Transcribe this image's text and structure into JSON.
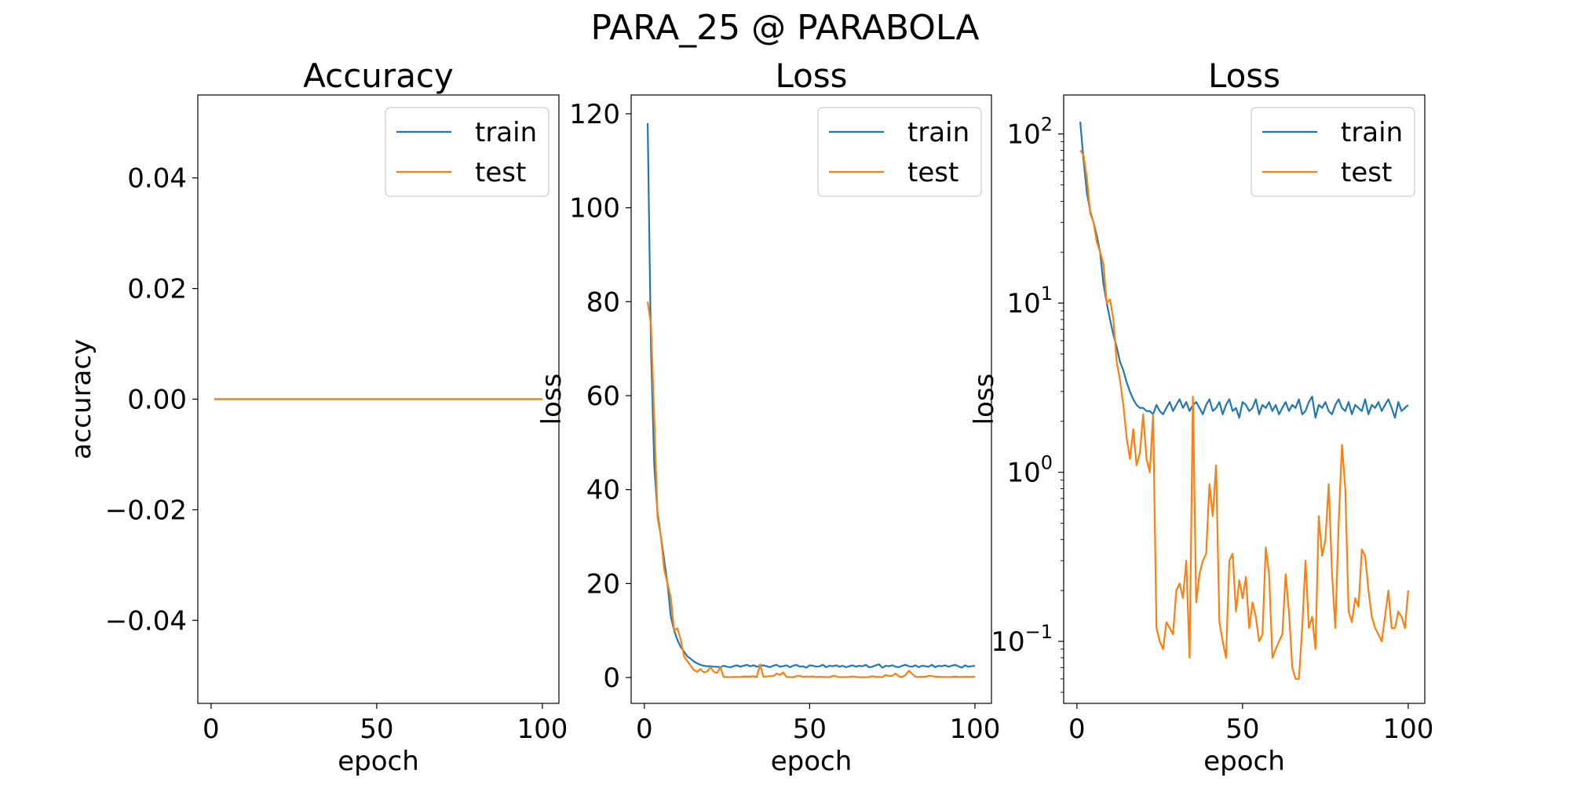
{
  "figure": {
    "suptitle": "PARA_25 @ PARABOLA"
  },
  "colors": {
    "train": "#1f77b4",
    "test": "#ff7f0e",
    "axis": "#000000",
    "background": "#ffffff"
  },
  "chart_data": [
    {
      "type": "line",
      "title": "Accuracy",
      "xlabel": "epoch",
      "ylabel": "accuracy",
      "xlim": [
        -4,
        105
      ],
      "ylim": [
        -0.055,
        0.055
      ],
      "yscale": "linear",
      "xticks": [
        0,
        50,
        100
      ],
      "xtick_labels": [
        "0",
        "50",
        "100"
      ],
      "yticks": [
        0.04,
        0.02,
        0.0,
        -0.02,
        -0.04
      ],
      "ytick_labels": [
        "0.04",
        "0.02",
        "0.00",
        "−0.02",
        "−0.04"
      ],
      "legend": {
        "position": "top-right",
        "entries": [
          "train",
          "test"
        ]
      },
      "grid": false,
      "series": [
        {
          "name": "train",
          "color": "#1f77b4",
          "x_start": 1,
          "x_step": 1,
          "values": [
            0,
            0,
            0,
            0,
            0,
            0,
            0,
            0,
            0,
            0,
            0,
            0,
            0,
            0,
            0,
            0,
            0,
            0,
            0,
            0,
            0,
            0,
            0,
            0,
            0,
            0,
            0,
            0,
            0,
            0,
            0,
            0,
            0,
            0,
            0,
            0,
            0,
            0,
            0,
            0,
            0,
            0,
            0,
            0,
            0,
            0,
            0,
            0,
            0,
            0,
            0,
            0,
            0,
            0,
            0,
            0,
            0,
            0,
            0,
            0,
            0,
            0,
            0,
            0,
            0,
            0,
            0,
            0,
            0,
            0,
            0,
            0,
            0,
            0,
            0,
            0,
            0,
            0,
            0,
            0,
            0,
            0,
            0,
            0,
            0,
            0,
            0,
            0,
            0,
            0,
            0,
            0,
            0,
            0,
            0,
            0,
            0,
            0,
            0,
            0
          ]
        },
        {
          "name": "test",
          "color": "#ff7f0e",
          "x_start": 1,
          "x_step": 1,
          "values": [
            0,
            0,
            0,
            0,
            0,
            0,
            0,
            0,
            0,
            0,
            0,
            0,
            0,
            0,
            0,
            0,
            0,
            0,
            0,
            0,
            0,
            0,
            0,
            0,
            0,
            0,
            0,
            0,
            0,
            0,
            0,
            0,
            0,
            0,
            0,
            0,
            0,
            0,
            0,
            0,
            0,
            0,
            0,
            0,
            0,
            0,
            0,
            0,
            0,
            0,
            0,
            0,
            0,
            0,
            0,
            0,
            0,
            0,
            0,
            0,
            0,
            0,
            0,
            0,
            0,
            0,
            0,
            0,
            0,
            0,
            0,
            0,
            0,
            0,
            0,
            0,
            0,
            0,
            0,
            0,
            0,
            0,
            0,
            0,
            0,
            0,
            0,
            0,
            0,
            0,
            0,
            0,
            0,
            0,
            0,
            0,
            0,
            0,
            0,
            0
          ]
        }
      ]
    },
    {
      "type": "line",
      "title": "Loss",
      "xlabel": "epoch",
      "ylabel": "loss",
      "xlim": [
        -4,
        105
      ],
      "ylim": [
        -5.5,
        124
      ],
      "yscale": "linear",
      "xticks": [
        0,
        50,
        100
      ],
      "xtick_labels": [
        "0",
        "50",
        "100"
      ],
      "yticks": [
        120,
        100,
        80,
        60,
        40,
        20,
        0
      ],
      "ytick_labels": [
        "120",
        "100",
        "80",
        "60",
        "40",
        "20",
        "0"
      ],
      "legend": {
        "position": "top-right",
        "entries": [
          "train",
          "test"
        ]
      },
      "grid": false,
      "series": [
        {
          "name": "train",
          "color": "#1f77b4",
          "x_start": 1,
          "x_step": 1,
          "values": [
            118,
            70,
            45,
            35,
            30,
            25,
            20,
            13,
            10,
            8,
            6.5,
            5.5,
            4.5,
            4,
            3.4,
            3,
            2.7,
            2.5,
            2.4,
            2.4,
            2.3,
            2.3,
            2.2,
            2.5,
            2.3,
            2.2,
            2.4,
            2.6,
            2.3,
            2.5,
            2.7,
            2.4,
            2.6,
            2.3,
            2.5,
            2.6,
            2.4,
            2.2,
            2.5,
            2.7,
            2.3,
            2.4,
            2.6,
            2.2,
            2.5,
            2.7,
            2.3,
            2.4,
            2.1,
            2.6,
            2.5,
            2.3,
            2.4,
            2.7,
            2.2,
            2.5,
            2.4,
            2.6,
            2.3,
            2.5,
            2.2,
            2.4,
            2.6,
            2.3,
            2.5,
            2.4,
            2.7,
            2.2,
            2.3,
            2.6,
            2.8,
            2.1,
            2.5,
            2.4,
            2.6,
            2.3,
            2.2,
            2.5,
            2.7,
            2.4,
            2.3,
            2.6,
            2.2,
            2.5,
            2.4,
            2.3,
            2.7,
            2.2,
            2.5,
            2.4,
            2.6,
            2.3,
            2.5,
            2.7,
            2.4,
            2.1,
            2.6,
            2.3,
            2.4,
            2.5
          ]
        },
        {
          "name": "test",
          "color": "#ff7f0e",
          "x_start": 1,
          "x_step": 1,
          "values": [
            80,
            75,
            55,
            34,
            30,
            23,
            20,
            17,
            10,
            10.5,
            8,
            4.5,
            3.5,
            2.5,
            1.6,
            1.2,
            1.8,
            1.1,
            1.3,
            2.2,
            1.2,
            1,
            2.2,
            0.12,
            0.1,
            0.09,
            0.13,
            0.12,
            0.11,
            0.2,
            0.22,
            0.18,
            0.3,
            0.08,
            2.8,
            0.17,
            0.25,
            0.3,
            0.33,
            0.85,
            0.55,
            1.1,
            0.13,
            0.1,
            0.08,
            0.3,
            0.33,
            0.15,
            0.23,
            0.18,
            0.24,
            0.12,
            0.17,
            0.14,
            0.1,
            0.11,
            0.36,
            0.25,
            0.08,
            0.09,
            0.1,
            0.11,
            0.25,
            0.15,
            0.07,
            0.06,
            0.06,
            0.12,
            0.3,
            0.12,
            0.14,
            0.09,
            0.55,
            0.32,
            0.4,
            0.85,
            0.25,
            0.12,
            0.5,
            1.45,
            0.8,
            0.15,
            0.13,
            0.18,
            0.16,
            0.35,
            0.32,
            0.2,
            0.14,
            0.12,
            0.11,
            0.1,
            0.14,
            0.2,
            0.12,
            0.12,
            0.15,
            0.14,
            0.12,
            0.2
          ]
        }
      ]
    },
    {
      "type": "line",
      "title": "Loss",
      "xlabel": "epoch",
      "ylabel": "loss",
      "xlim": [
        -4,
        105
      ],
      "ylim": [
        0.043,
        170
      ],
      "yscale": "log",
      "xticks": [
        0,
        50,
        100
      ],
      "xtick_labels": [
        "0",
        "50",
        "100"
      ],
      "yticks": [
        100,
        10,
        1,
        0.1
      ],
      "ytick_labels": [
        {
          "base": "10",
          "exp": "2"
        },
        {
          "base": "10",
          "exp": "1"
        },
        {
          "base": "10",
          "exp": "0"
        },
        {
          "base": "10",
          "exp": "−1"
        }
      ],
      "legend": {
        "position": "top-right",
        "entries": [
          "train",
          "test"
        ]
      },
      "grid": false,
      "series": [
        {
          "name": "train",
          "color": "#1f77b4",
          "x_start": 1,
          "x_step": 1,
          "values": [
            118,
            70,
            45,
            35,
            30,
            25,
            20,
            13,
            10,
            8,
            6.5,
            5.5,
            4.5,
            4,
            3.4,
            3,
            2.7,
            2.5,
            2.4,
            2.4,
            2.3,
            2.3,
            2.2,
            2.5,
            2.3,
            2.2,
            2.4,
            2.6,
            2.3,
            2.5,
            2.7,
            2.4,
            2.6,
            2.3,
            2.5,
            2.6,
            2.4,
            2.2,
            2.5,
            2.7,
            2.3,
            2.4,
            2.6,
            2.2,
            2.5,
            2.7,
            2.3,
            2.4,
            2.1,
            2.6,
            2.5,
            2.3,
            2.4,
            2.7,
            2.2,
            2.5,
            2.4,
            2.6,
            2.3,
            2.5,
            2.2,
            2.4,
            2.6,
            2.3,
            2.5,
            2.4,
            2.7,
            2.2,
            2.3,
            2.6,
            2.8,
            2.1,
            2.5,
            2.4,
            2.6,
            2.3,
            2.2,
            2.5,
            2.7,
            2.4,
            2.3,
            2.6,
            2.2,
            2.5,
            2.4,
            2.3,
            2.7,
            2.2,
            2.5,
            2.4,
            2.6,
            2.3,
            2.5,
            2.7,
            2.4,
            2.1,
            2.6,
            2.3,
            2.4,
            2.5
          ]
        },
        {
          "name": "test",
          "color": "#ff7f0e",
          "x_start": 1,
          "x_step": 1,
          "values": [
            80,
            75,
            55,
            34,
            30,
            23,
            20,
            17,
            10,
            10.5,
            8,
            4.5,
            3.5,
            2.5,
            1.6,
            1.2,
            1.8,
            1.1,
            1.3,
            2.2,
            1.2,
            1,
            2.2,
            0.12,
            0.1,
            0.09,
            0.13,
            0.12,
            0.11,
            0.2,
            0.22,
            0.18,
            0.3,
            0.08,
            2.8,
            0.17,
            0.25,
            0.3,
            0.33,
            0.85,
            0.55,
            1.1,
            0.13,
            0.1,
            0.08,
            0.3,
            0.33,
            0.15,
            0.23,
            0.18,
            0.24,
            0.12,
            0.17,
            0.14,
            0.1,
            0.11,
            0.36,
            0.25,
            0.08,
            0.09,
            0.1,
            0.11,
            0.25,
            0.15,
            0.07,
            0.06,
            0.06,
            0.12,
            0.3,
            0.12,
            0.14,
            0.09,
            0.55,
            0.32,
            0.4,
            0.85,
            0.25,
            0.12,
            0.5,
            1.45,
            0.8,
            0.15,
            0.13,
            0.18,
            0.16,
            0.35,
            0.32,
            0.2,
            0.14,
            0.12,
            0.11,
            0.1,
            0.14,
            0.2,
            0.12,
            0.12,
            0.15,
            0.14,
            0.12,
            0.2
          ]
        }
      ]
    }
  ]
}
